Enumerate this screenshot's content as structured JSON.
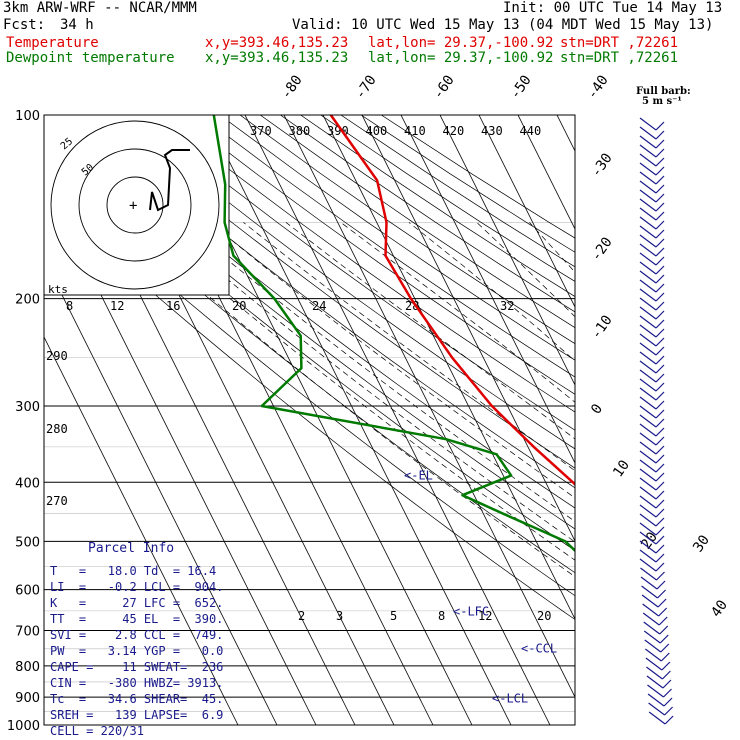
{
  "header": {
    "model": "3km ARW-WRF -- NCAR/MMM",
    "init": "Init: 00 UTC Tue 14 May 13",
    "fcst_label": "Fcst:",
    "fcst_value": "34 h",
    "valid": "Valid: 10 UTC Wed 15 May 13 (04 MDT Wed 15 May 13)",
    "temp_label": "Temperature",
    "dew_label": "Dewpoint temperature",
    "xy": "x,y=393.46,135.23",
    "latlon": "lat,lon= 29.37,-100.92",
    "stn": "stn=DRT ,72261"
  },
  "barb_note": {
    "line1": "Full barb:",
    "line2": "5 m s⁻¹"
  },
  "hodograph": {
    "units": "kts",
    "ring_labels": [
      "25",
      "50"
    ]
  },
  "parcel_info": {
    "title": "Parcel Info",
    "lines": [
      "T   =   18.0 Td  = 16.4",
      "LI  =   -0.2 LCL =  904.",
      "K   =     27 LFC =  652.",
      "TT  =     45 EL  =  390.",
      "SVI =    2.8 CCL =  749.",
      "PW  =   3.14 YGP =   0.0",
      "CAPE =    11 SWEAT=  236",
      "CIN =   -380 HWBZ= 3913.",
      "Tc  =   34.6 SHEAR=  45.",
      "SREH =   139 LAPSE=  6.9",
      "CELL = 220/31"
    ]
  },
  "chart_data": {
    "type": "line",
    "y_axis": {
      "label": "",
      "scale": "log",
      "range": [
        1000,
        100
      ],
      "ticks": [
        100,
        200,
        300,
        400,
        500,
        600,
        700,
        800,
        900,
        1000
      ]
    },
    "isotherm_labels": [
      "-80",
      "-70",
      "-60",
      "-50",
      "-40",
      "-30",
      "-20",
      "-10",
      "0",
      "10",
      "20",
      "30",
      "40"
    ],
    "theta_labels": [
      "370",
      "380",
      "390",
      "400",
      "410",
      "420",
      "430",
      "440"
    ],
    "dry_adiabat_labels": [
      "290",
      "280",
      "270"
    ],
    "mixing_ratio_labels": [
      "8",
      "12",
      "16",
      "20",
      "24",
      "28",
      "32"
    ],
    "lower_mixing_labels": [
      "2",
      "3",
      "5",
      "8",
      "12",
      "20"
    ],
    "level_markers": [
      {
        "label": "<-EL",
        "p": 390
      },
      {
        "label": "<-LFC",
        "p": 652
      },
      {
        "label": "<-CCL",
        "p": 749
      },
      {
        "label": "<-LCL",
        "p": 904
      }
    ],
    "series": [
      {
        "name": "Temperature",
        "color": "#e00000",
        "points": [
          [
            100,
            -48
          ],
          [
            128,
            -44.5
          ],
          [
            150,
            -47.5
          ],
          [
            170,
            -52
          ],
          [
            200,
            -51
          ],
          [
            250,
            -48
          ],
          [
            300,
            -44
          ],
          [
            350,
            -38.5
          ],
          [
            400,
            -33
          ],
          [
            450,
            -29
          ],
          [
            500,
            -24
          ],
          [
            550,
            -19
          ],
          [
            600,
            -14
          ],
          [
            650,
            -9.5
          ],
          [
            700,
            -3.5
          ],
          [
            750,
            5
          ],
          [
            800,
            14
          ],
          [
            850,
            15.5
          ],
          [
            880,
            14
          ],
          [
            900,
            14.5
          ],
          [
            925,
            17
          ],
          [
            950,
            18
          ],
          [
            1000,
            18
          ]
        ]
      },
      {
        "name": "Dewpoint temperature",
        "color": "#007a00",
        "points": [
          [
            100,
            -78
          ],
          [
            130,
            -84
          ],
          [
            150,
            -89
          ],
          [
            170,
            -91
          ],
          [
            200,
            -86
          ],
          [
            230,
            -84
          ],
          [
            260,
            -88
          ],
          [
            300,
            -103
          ],
          [
            340,
            -60
          ],
          [
            360,
            -49
          ],
          [
            390,
            -48
          ],
          [
            420,
            -63
          ],
          [
            450,
            -55
          ],
          [
            500,
            -42.5
          ],
          [
            550,
            -39
          ],
          [
            580,
            -40
          ],
          [
            600,
            -38
          ],
          [
            650,
            -26
          ],
          [
            700,
            -34
          ],
          [
            750,
            -28
          ],
          [
            800,
            -34
          ],
          [
            850,
            -8
          ],
          [
            880,
            12.5
          ],
          [
            900,
            14.5
          ],
          [
            925,
            13
          ],
          [
            950,
            14
          ],
          [
            1000,
            16.4
          ]
        ]
      }
    ]
  },
  "colors": {
    "temperature": "#e00000",
    "dewpoint": "#007a00",
    "info_text": "#1a1a8c",
    "wind_barbs": "#1a1a8c"
  }
}
